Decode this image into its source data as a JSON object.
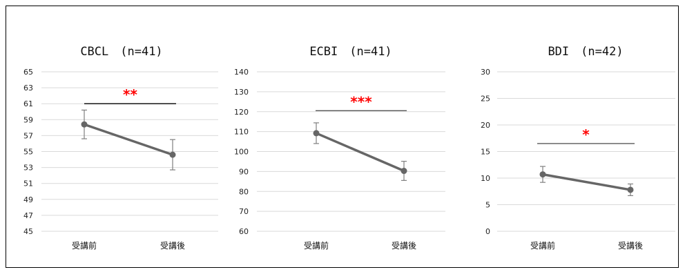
{
  "chart_data": [
    {
      "type": "line",
      "title": "CBCL　(n=41)",
      "categories": [
        "受講前",
        "受講後"
      ],
      "values": [
        58.4,
        54.6
      ],
      "error": [
        1.8,
        1.9
      ],
      "ylim": [
        45,
        65
      ],
      "yticks": [
        45,
        47,
        49,
        51,
        53,
        55,
        57,
        59,
        61,
        63,
        65
      ],
      "significance": {
        "label": "**",
        "y": 61
      },
      "grid": true
    },
    {
      "type": "line",
      "title": "ECBI　(n=41)",
      "categories": [
        "受講前",
        "受講後"
      ],
      "values": [
        109.2,
        90.3
      ],
      "error": [
        5.2,
        4.8
      ],
      "ylim": [
        60,
        140
      ],
      "yticks": [
        60,
        70,
        80,
        90,
        100,
        110,
        120,
        130,
        140
      ],
      "significance": {
        "label": "***",
        "y": 120.5
      },
      "grid": true
    },
    {
      "type": "line",
      "title": "BDI　(n=42)",
      "categories": [
        "受講前",
        "受講後"
      ],
      "values": [
        10.7,
        7.8
      ],
      "error": [
        1.5,
        1.1
      ],
      "ylim": [
        0,
        30
      ],
      "yticks": [
        0,
        5,
        10,
        15,
        20,
        25,
        30
      ],
      "significance": {
        "label": "*",
        "y": 16.5
      },
      "grid": true
    }
  ],
  "colors": {
    "line": "#666666",
    "grid": "#d9d9d9",
    "bracket_cbcl": "#000000",
    "bracket": "#595959",
    "significance": "#ff0000"
  }
}
